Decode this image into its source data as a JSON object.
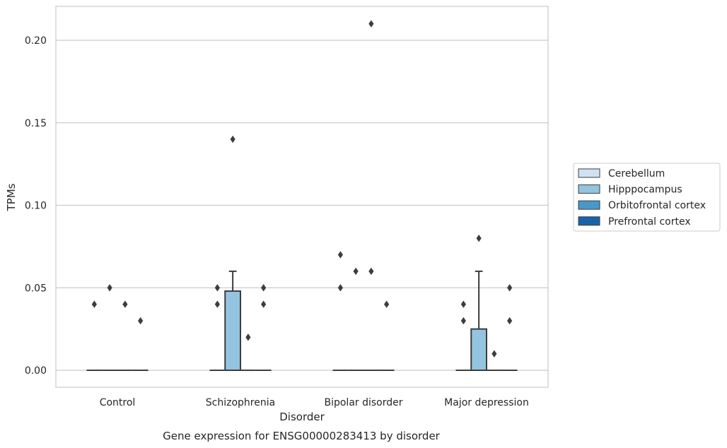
{
  "chart_data": {
    "type": "box",
    "title": "Gene expression for ENSG00000283413 by disorder",
    "xlabel": "Disorder",
    "ylabel": "TPMs",
    "ylim": [
      -0.01,
      0.22
    ],
    "yticks": [
      0.0,
      0.05,
      0.1,
      0.15,
      0.2
    ],
    "ytick_labels": [
      "0.00",
      "0.05",
      "0.10",
      "0.15",
      "0.20"
    ],
    "grid": "horizontal",
    "legend_position": "right",
    "categories": [
      "Control",
      "Schizophrenia",
      "Bipolar disorder",
      "Major depression"
    ],
    "series": [
      {
        "name": "Cerebellum",
        "color": "#d0e1f2",
        "boxes": [
          {
            "q1": 0,
            "median": 0,
            "q3": 0,
            "whisker_low": 0,
            "whisker_high": 0,
            "outliers": [
              0.04
            ]
          },
          {
            "q1": 0,
            "median": 0,
            "q3": 0,
            "whisker_low": 0,
            "whisker_high": 0,
            "outliers": [
              0.05,
              0.04
            ]
          },
          {
            "q1": 0,
            "median": 0,
            "q3": 0,
            "whisker_low": 0,
            "whisker_high": 0,
            "outliers": [
              0.07,
              0.05
            ]
          },
          {
            "q1": 0,
            "median": 0,
            "q3": 0,
            "whisker_low": 0,
            "whisker_high": 0,
            "outliers": [
              0.04,
              0.03
            ]
          }
        ]
      },
      {
        "name": "Hipppocampus",
        "color": "#94c4df",
        "boxes": [
          {
            "q1": 0,
            "median": 0,
            "q3": 0,
            "whisker_low": 0,
            "whisker_high": 0,
            "outliers": [
              0.05
            ]
          },
          {
            "q1": 0,
            "median": 0,
            "q3": 0.048,
            "whisker_low": 0,
            "whisker_high": 0.06,
            "outliers": [
              0.14
            ]
          },
          {
            "q1": 0,
            "median": 0,
            "q3": 0,
            "whisker_low": 0,
            "whisker_high": 0,
            "outliers": [
              0.06
            ]
          },
          {
            "q1": 0,
            "median": 0,
            "q3": 0.025,
            "whisker_low": 0,
            "whisker_high": 0.06,
            "outliers": [
              0.08
            ]
          }
        ]
      },
      {
        "name": "Orbitofrontal cortex",
        "color": "#4a98c9",
        "boxes": [
          {
            "q1": 0,
            "median": 0,
            "q3": 0,
            "whisker_low": 0,
            "whisker_high": 0,
            "outliers": [
              0.04
            ]
          },
          {
            "q1": 0,
            "median": 0,
            "q3": 0,
            "whisker_low": 0,
            "whisker_high": 0,
            "outliers": [
              0.02
            ]
          },
          {
            "q1": 0,
            "median": 0,
            "q3": 0,
            "whisker_low": 0,
            "whisker_high": 0,
            "outliers": [
              0.21,
              0.06
            ]
          },
          {
            "q1": 0,
            "median": 0,
            "q3": 0,
            "whisker_low": 0,
            "whisker_high": 0,
            "outliers": [
              0.01
            ]
          }
        ]
      },
      {
        "name": "Prefrontal cortex",
        "color": "#1764ab",
        "boxes": [
          {
            "q1": 0,
            "median": 0,
            "q3": 0,
            "whisker_low": 0,
            "whisker_high": 0,
            "outliers": [
              0.03
            ]
          },
          {
            "q1": 0,
            "median": 0,
            "q3": 0,
            "whisker_low": 0,
            "whisker_high": 0,
            "outliers": [
              0.05,
              0.04
            ]
          },
          {
            "q1": 0,
            "median": 0,
            "q3": 0,
            "whisker_low": 0,
            "whisker_high": 0,
            "outliers": [
              0.04
            ]
          },
          {
            "q1": 0,
            "median": 0,
            "q3": 0,
            "whisker_low": 0,
            "whisker_high": 0,
            "outliers": [
              0.05,
              0.03
            ]
          }
        ]
      }
    ]
  },
  "colors": {
    "background": "#ffffff",
    "grid": "#cccccc",
    "axes_edge": "#cccccc",
    "box_edge": "#3d3d3d",
    "outlier": "#3d3d3d"
  }
}
